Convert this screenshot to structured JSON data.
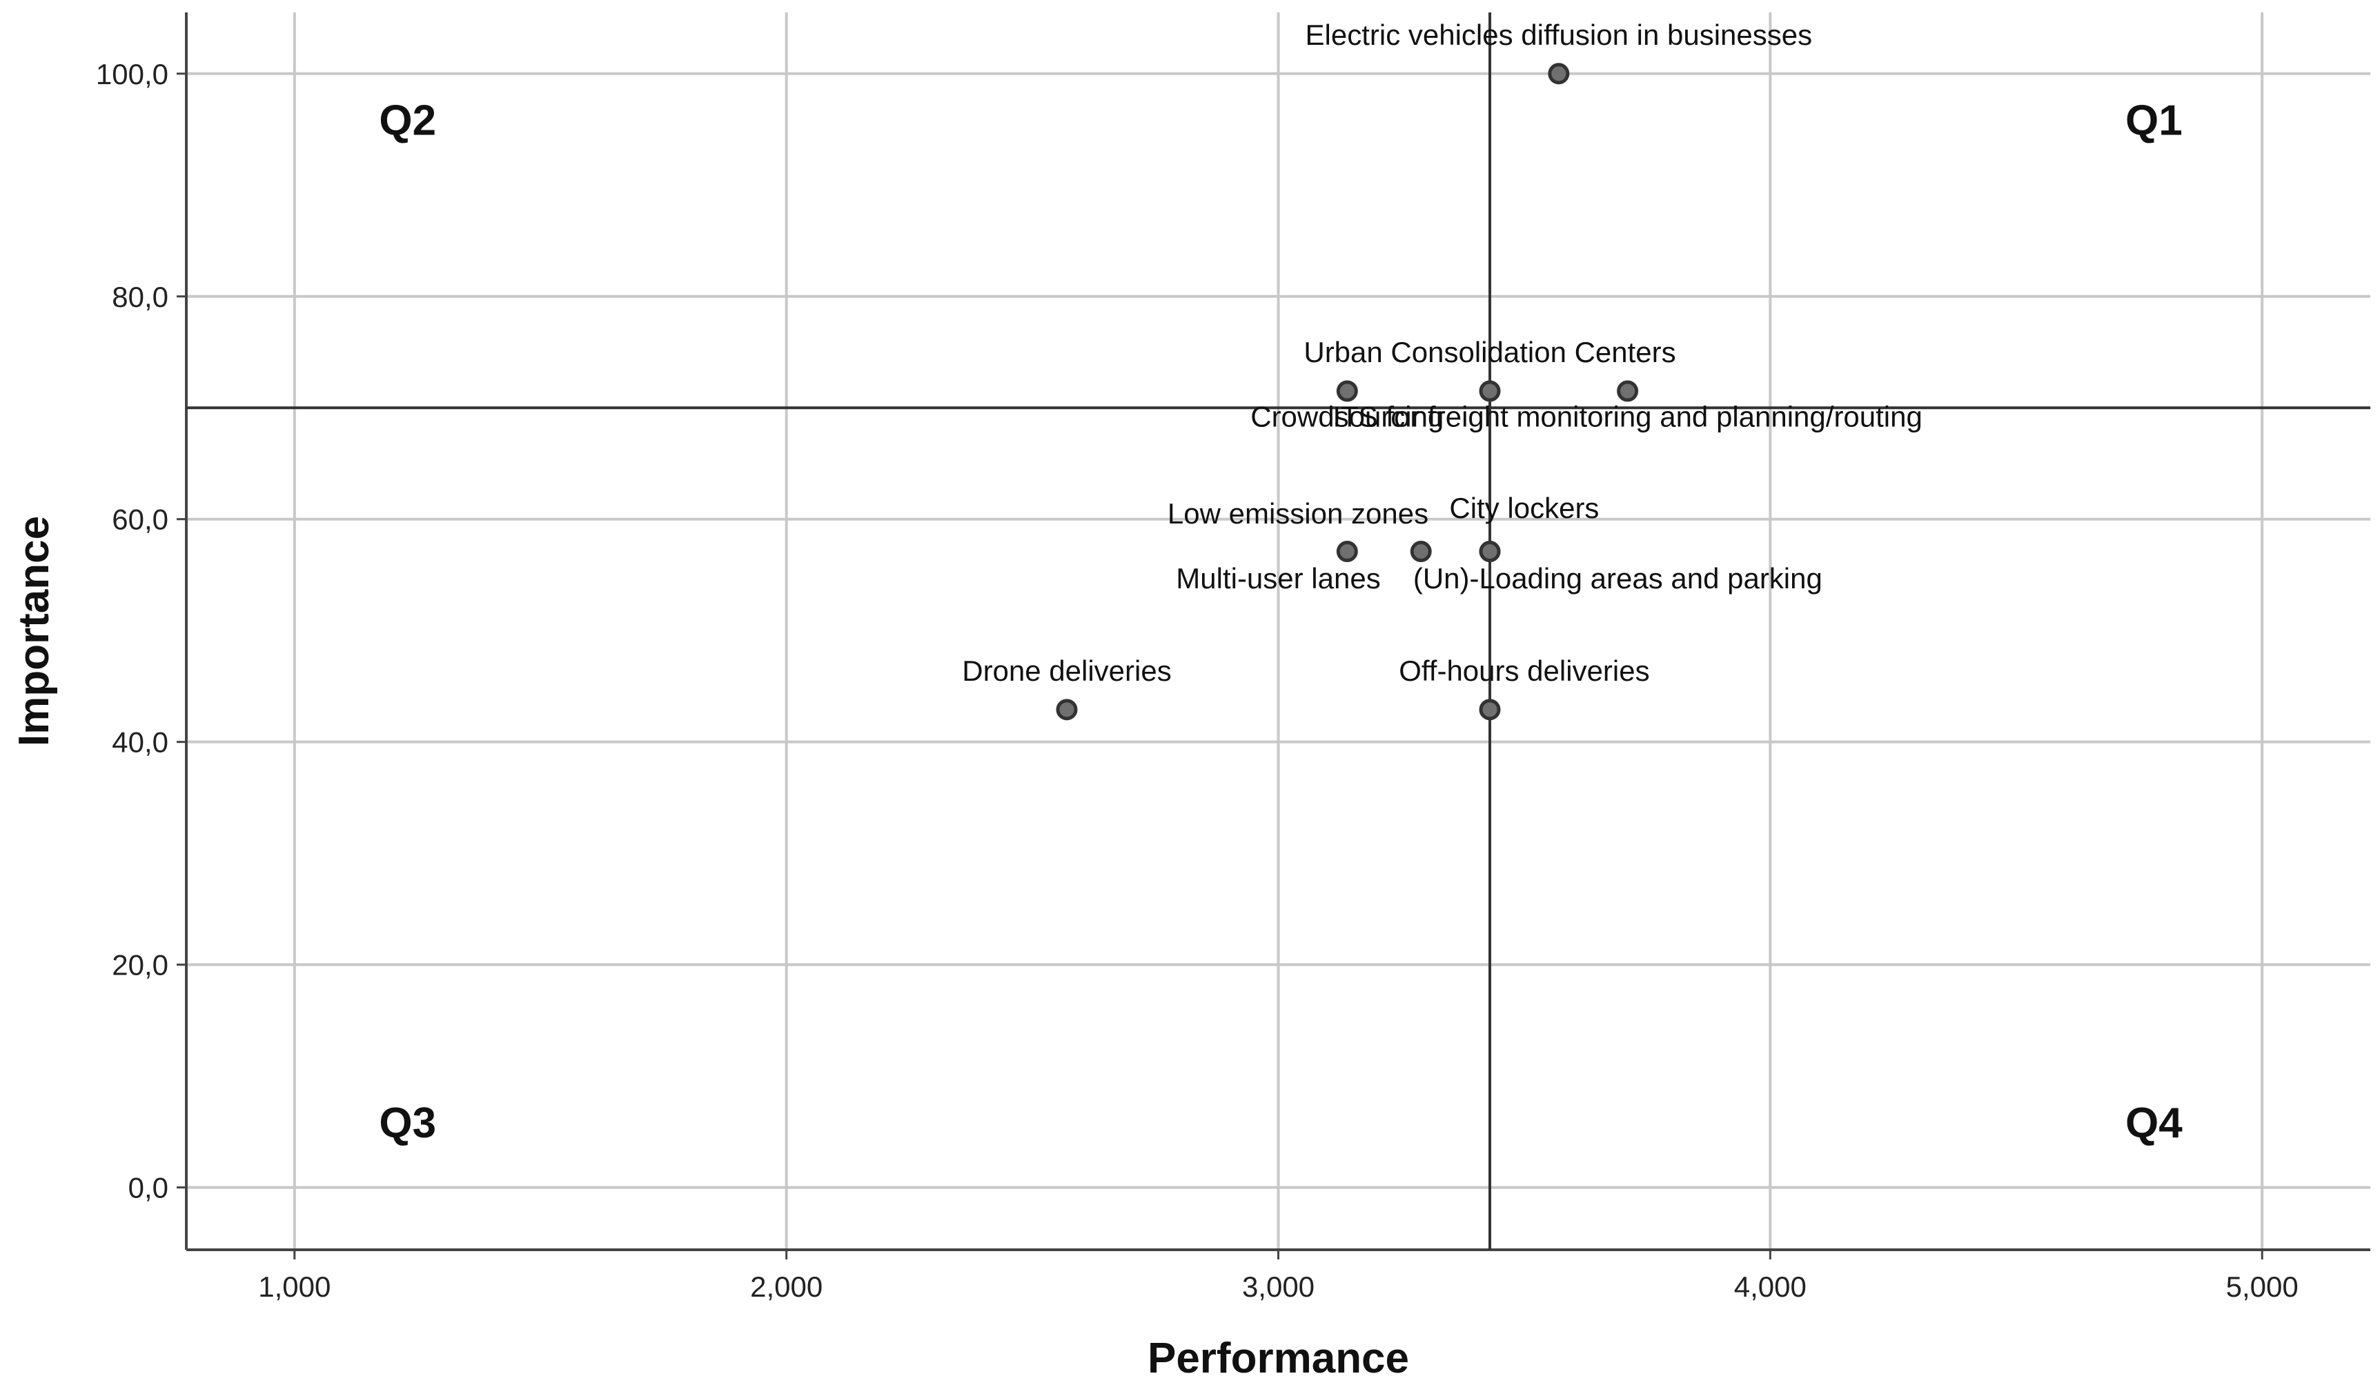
{
  "chart_data": {
    "type": "scatter",
    "xlabel": "Performance",
    "ylabel": "Importance",
    "xlim": [
      0.78,
      5.22
    ],
    "ylim": [
      -5.6,
      105.5
    ],
    "x_ticks": [
      {
        "value": 1,
        "label": "1,000"
      },
      {
        "value": 2,
        "label": "2,000"
      },
      {
        "value": 3,
        "label": "3,000"
      },
      {
        "value": 4,
        "label": "4,000"
      },
      {
        "value": 5,
        "label": "5,000"
      }
    ],
    "y_ticks": [
      {
        "value": 0,
        "label": "0,0"
      },
      {
        "value": 20,
        "label": "20,0"
      },
      {
        "value": 40,
        "label": "40,0"
      },
      {
        "value": 60,
        "label": "60,0"
      },
      {
        "value": 80,
        "label": "80,0"
      },
      {
        "value": 100,
        "label": "100,0"
      }
    ],
    "grid": true,
    "reference_lines": {
      "x": 3.43,
      "y": 70
    },
    "quadrants": [
      {
        "label": "Q1",
        "x": 4.78,
        "y": 94.5
      },
      {
        "label": "Q2",
        "x": 1.23,
        "y": 94.5
      },
      {
        "label": "Q3",
        "x": 1.23,
        "y": 4.5
      },
      {
        "label": "Q4",
        "x": 4.78,
        "y": 4.5
      }
    ],
    "points": [
      {
        "label": "Electric vehicles diffusion in businesses",
        "x": 3.57,
        "y": 100.0,
        "label_x": 3.57,
        "label_y": 102.6
      },
      {
        "label": "Urban Consolidation Centers",
        "x": 3.43,
        "y": 71.5,
        "label_x": 3.43,
        "label_y": 74.1
      },
      {
        "label": "Crowdsourcing",
        "x": 3.14,
        "y": 71.5,
        "label_x": 3.14,
        "label_y": 68.3
      },
      {
        "label": "ITS for freight monitoring and planning/routing",
        "x": 3.71,
        "y": 71.5,
        "label_x": 3.71,
        "label_y": 68.3
      },
      {
        "label": "Low emission zones",
        "x": 3.14,
        "y": 57.1,
        "label_x": 3.04,
        "label_y": 59.6
      },
      {
        "label": "City lockers",
        "x": 3.43,
        "y": 57.1,
        "label_x": 3.5,
        "label_y": 60.1
      },
      {
        "label": "Multi-user lanes",
        "x": 3.29,
        "y": 57.1,
        "label_x": 3.0,
        "label_y": 53.8
      },
      {
        "label": "(Un)-Loading areas and parking",
        "x": 3.43,
        "y": 57.1,
        "label_x": 3.69,
        "label_y": 53.8
      },
      {
        "label": "Drone deliveries",
        "x": 2.57,
        "y": 42.9,
        "label_x": 2.57,
        "label_y": 45.5
      },
      {
        "label": "Off-hours deliveries",
        "x": 3.43,
        "y": 42.9,
        "label_x": 3.5,
        "label_y": 45.5
      }
    ]
  },
  "colors": {
    "grid": "#c8c8c8",
    "axis": "#444444",
    "reference_line": "#333333",
    "marker_fill": "#707070",
    "marker_stroke": "#333333"
  }
}
